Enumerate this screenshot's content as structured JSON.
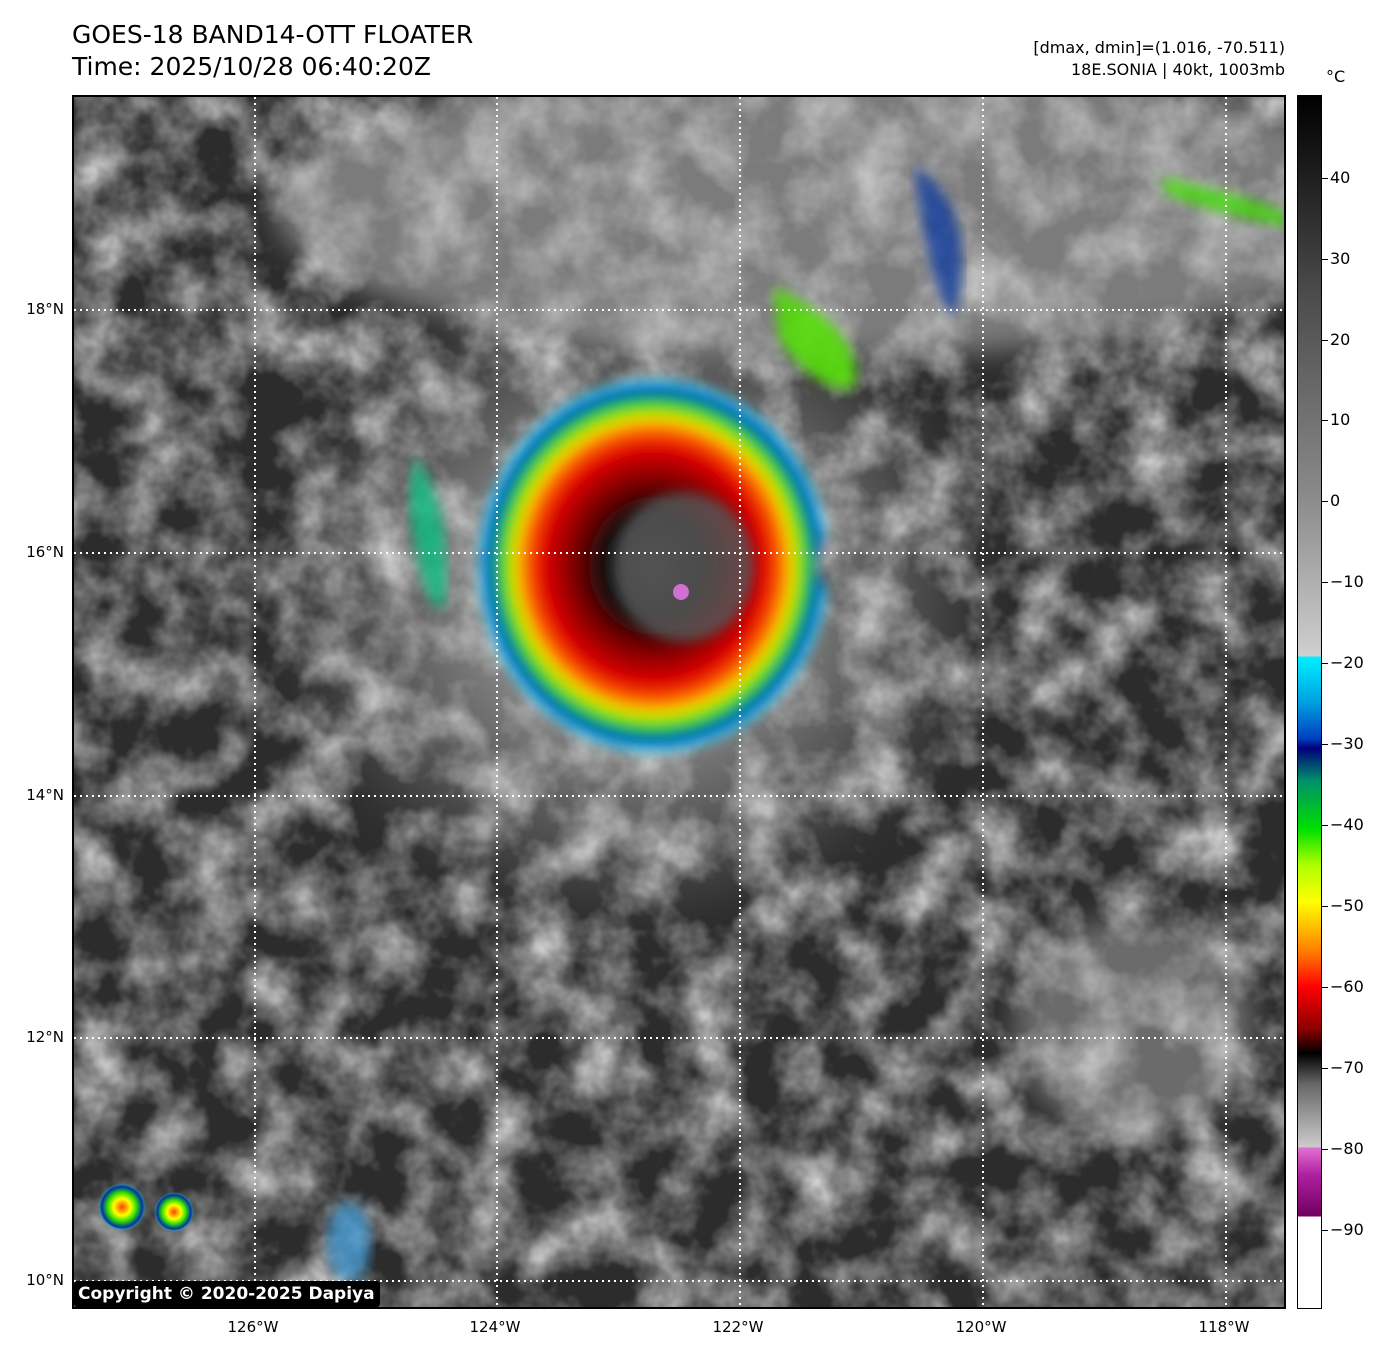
{
  "header": {
    "title": "GOES-18 BAND14-OTT FLOATER",
    "time": "Time: 2025/10/28 06:40:20Z",
    "dminmax": "[dmax, dmin]=(1.016, -70.511)",
    "storm": "18E.SONIA | 40kt, 1003mb"
  },
  "map": {
    "lat_labels": [
      "18°N",
      "16°N",
      "14°N",
      "12°N",
      "10°N"
    ],
    "lon_labels": [
      "126°W",
      "124°W",
      "122°W",
      "120°W",
      "118°W"
    ],
    "copyright": "Copyright © 2020-2025 Dapiya"
  },
  "colorbar": {
    "unit": "°C",
    "ticks": [
      "40",
      "30",
      "20",
      "10",
      "0",
      "−10",
      "−20",
      "−30",
      "−40",
      "−50",
      "−60",
      "−70",
      "−80",
      "−90"
    ]
  }
}
